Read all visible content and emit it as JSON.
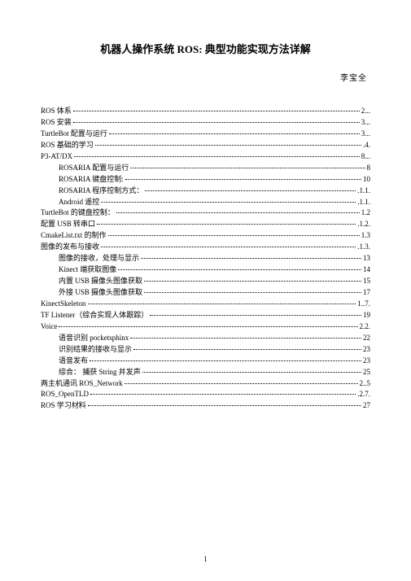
{
  "title": "机器人操作系统 ROS: 典型功能实现方法详解",
  "author": "李宝全",
  "toc": [
    {
      "label": "ROS 体系",
      "page": "2...",
      "indent": 0
    },
    {
      "label": "ROS 安装",
      "page": "3...",
      "indent": 0
    },
    {
      "label": "TurtleBot 配置与运行",
      "page": "3...",
      "indent": 0
    },
    {
      "label": "ROS 基础的学习",
      "page": ".4.",
      "indent": 0
    },
    {
      "label": "P3-AT/DX",
      "page": "8...",
      "indent": 0
    },
    {
      "label": "ROSARIA 配置与运行",
      "page": "8",
      "indent": 1
    },
    {
      "label": "ROSARIA 键盘控制:",
      "page": "10",
      "indent": 1
    },
    {
      "label": "ROSARIA 程序控制方式：",
      "page": ".1.1.",
      "indent": 1
    },
    {
      "label": "Android 遥控",
      "page": ".1.1.",
      "indent": 1
    },
    {
      "label": "TurtleBot 的键盘控制：",
      "page": " 1.2",
      "indent": 0
    },
    {
      "label": "配置 USB 转串口",
      "page": ".1.2.",
      "indent": 0
    },
    {
      "label": "CmakeList.txt 的制作",
      "page": " 1.3",
      "indent": 0
    },
    {
      "label": "图像的发布与接收",
      "page": ".1.3.",
      "indent": 0
    },
    {
      "label": "图像的接收，处理与显示",
      "page": "13",
      "indent": 1
    },
    {
      "label": "Kinect 端获取图像",
      "page": "14",
      "indent": 1
    },
    {
      "label": "内置 USB 摄像头图像获取",
      "page": "15",
      "indent": 1
    },
    {
      "label": "外接 USB 摄像头图像获取",
      "page": " 17",
      "indent": 1
    },
    {
      "label": "KinectSkeleton",
      "page": " 1..7.",
      "indent": 0
    },
    {
      "label": "TF Listener（综合实现人体跟踪）",
      "page": " 19",
      "indent": 0
    },
    {
      "label": "Voice",
      "page": " 2.2.",
      "indent": 0
    },
    {
      "label": "语音识别 pocketsphinx",
      "page": "22",
      "indent": 1
    },
    {
      "label": "识别结果的接收与显示",
      "page": "23",
      "indent": 1
    },
    {
      "label": "语音发布",
      "page": "23",
      "indent": 1
    },
    {
      "label": "综合： 捕获 String 并发声",
      "page": "25",
      "indent": 1
    },
    {
      "label": "两主机通讯 ROS_Network",
      "page": " 2..5",
      "indent": 0
    },
    {
      "label": "ROS_OpenTLD",
      "page": ".2.7.",
      "indent": 0
    },
    {
      "label": "ROS 学习材料",
      "page": " 27",
      "indent": 0
    }
  ],
  "pageNumber": "1"
}
